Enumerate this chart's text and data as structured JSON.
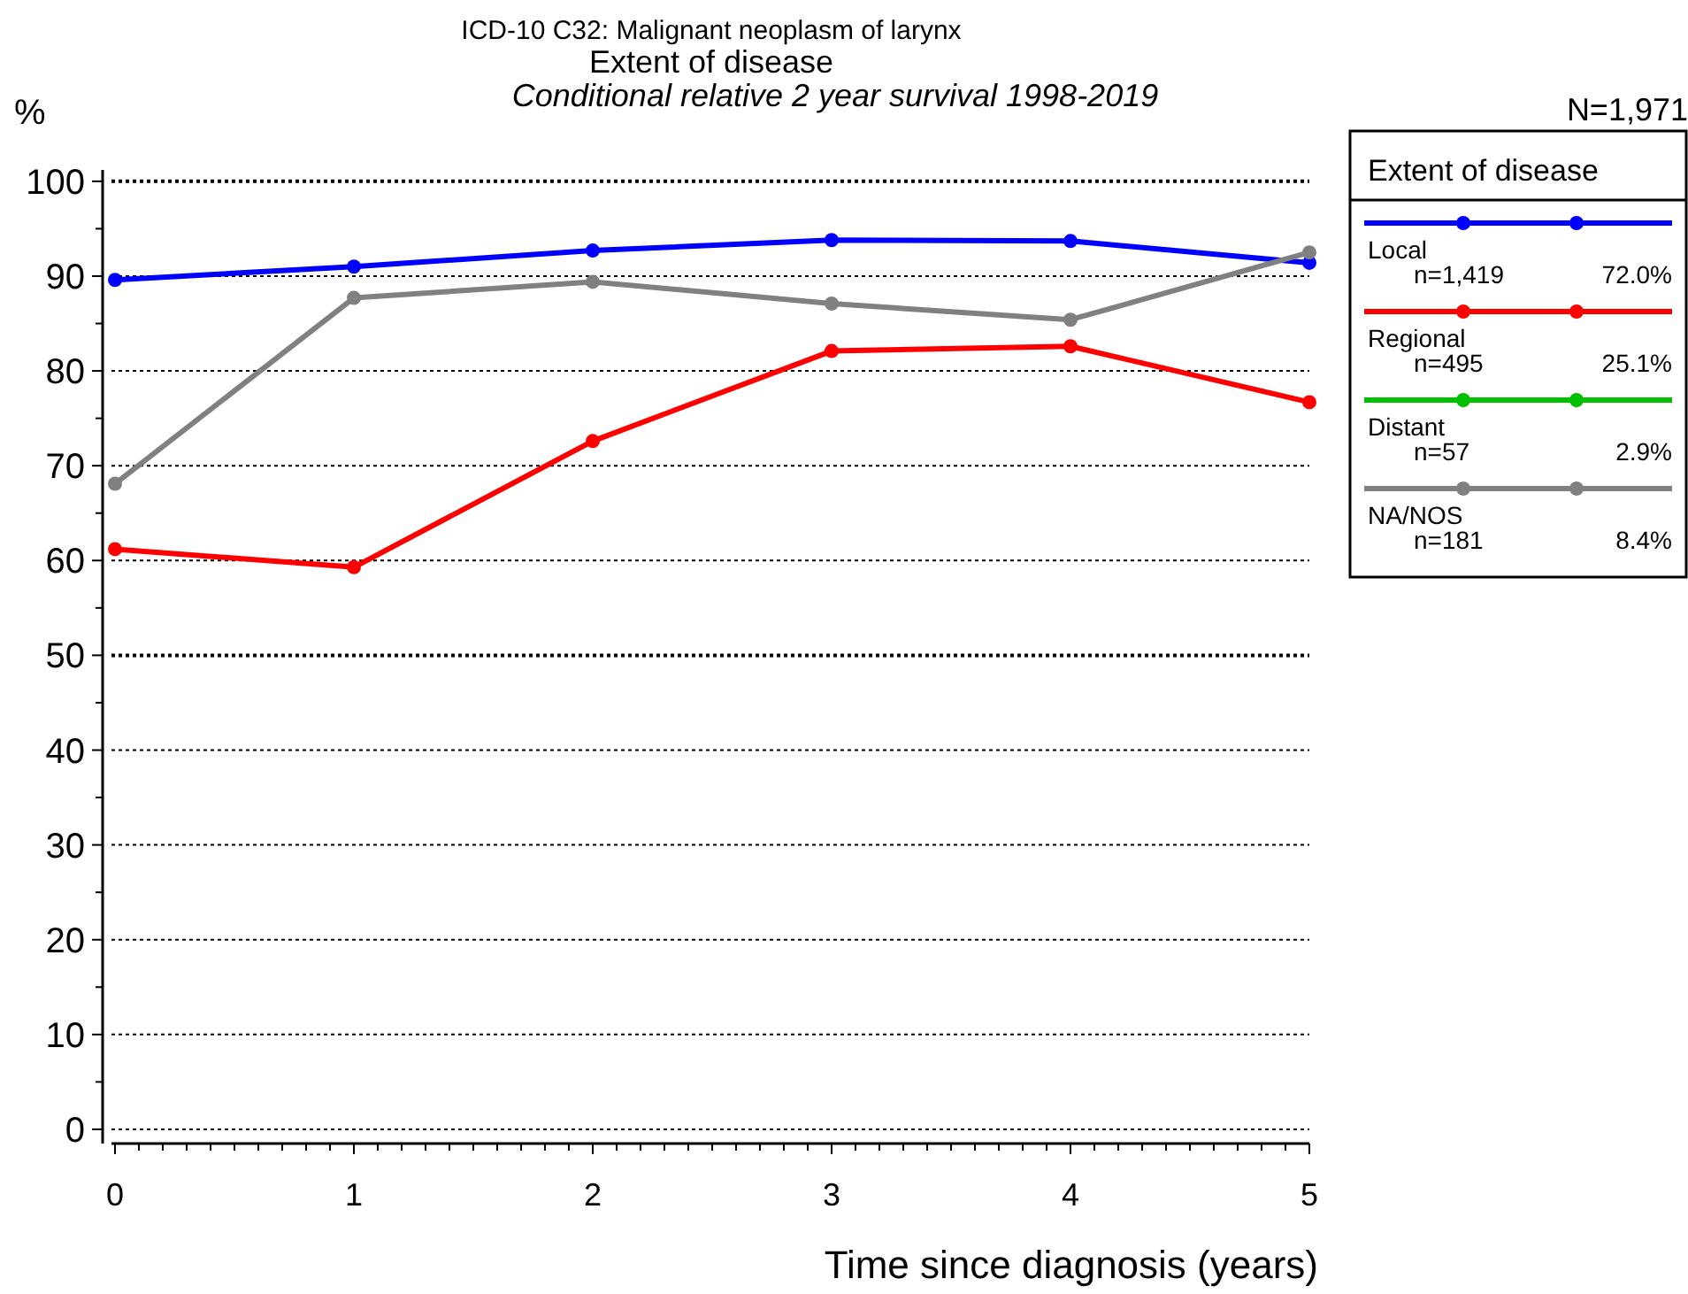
{
  "chart_data": {
    "type": "line",
    "title": "ICD-10 C32: Malignant neoplasm of larynx\nExtent of disease",
    "subtitle": "Conditional relative 2 year survival 1998-2019",
    "xlabel": "Time since diagnosis (years)",
    "ylabel": "%",
    "legend_title": "Extent of disease",
    "legend": "right",
    "grid": "y",
    "marker": "circle",
    "line_style": "solid",
    "x": [
      0,
      1,
      2,
      3,
      4,
      5
    ],
    "xlim": [
      0,
      5
    ],
    "ylim": [
      -1.5,
      101.2
    ],
    "xticks": [
      0,
      {
        "value": 0.1,
        "label": null
      },
      {
        "value": 0.2,
        "label": null
      },
      {
        "value": 0.3,
        "label": null
      },
      {
        "value": 0.4,
        "label": null
      },
      {
        "value": 0.5,
        "label": null
      },
      {
        "value": 0.6,
        "label": null
      },
      {
        "value": 0.7,
        "label": null
      },
      {
        "value": 0.8,
        "label": null
      },
      {
        "value": 0.9,
        "label": null
      },
      1,
      {
        "value": 1.1,
        "label": null
      },
      {
        "value": 1.2,
        "label": null
      },
      {
        "value": 1.3,
        "label": null
      },
      {
        "value": 1.4,
        "label": null
      },
      {
        "value": 1.5,
        "label": null
      },
      {
        "value": 1.6,
        "label": null
      },
      {
        "value": 1.7,
        "label": null
      },
      {
        "value": 1.8,
        "label": null
      },
      {
        "value": 1.9,
        "label": null
      },
      2,
      {
        "value": 2.1,
        "label": null
      },
      {
        "value": 2.2,
        "label": null
      },
      {
        "value": 2.3,
        "label": null
      },
      {
        "value": 2.4,
        "label": null
      },
      {
        "value": 2.5,
        "label": null
      },
      {
        "value": 2.6,
        "label": null
      },
      {
        "value": 2.7,
        "label": null
      },
      {
        "value": 2.8,
        "label": null
      },
      {
        "value": 2.9,
        "label": null
      },
      3,
      {
        "value": 3.1,
        "label": null
      },
      {
        "value": 3.2,
        "label": null
      },
      {
        "value": 3.3,
        "label": null
      },
      {
        "value": 3.4,
        "label": null
      },
      {
        "value": 3.5,
        "label": null
      },
      {
        "value": 3.6,
        "label": null
      },
      {
        "value": 3.7,
        "label": null
      },
      {
        "value": 3.8,
        "label": null
      },
      {
        "value": 3.9,
        "label": null
      },
      4,
      {
        "value": 4.1,
        "label": null
      },
      {
        "value": 4.2,
        "label": null
      },
      {
        "value": 4.3,
        "label": null
      },
      {
        "value": 4.4,
        "label": null
      },
      {
        "value": 4.5,
        "label": null
      },
      {
        "value": 4.6,
        "label": null
      },
      {
        "value": 4.7,
        "label": null
      },
      {
        "value": 4.8,
        "label": null
      },
      {
        "value": 4.9,
        "label": null
      },
      5
    ],
    "yticks": [
      0,
      {
        "value": 5,
        "label": null
      },
      10,
      {
        "value": 15,
        "label": null
      },
      20,
      {
        "value": 25,
        "label": null
      },
      30,
      {
        "value": 35,
        "label": null
      },
      40,
      {
        "value": 45,
        "label": null
      },
      50,
      {
        "value": 55,
        "label": null
      },
      60,
      {
        "value": 65,
        "label": null
      },
      70,
      {
        "value": 75,
        "label": null
      },
      80,
      {
        "value": 85,
        "label": null
      },
      90,
      {
        "value": 95,
        "label": null
      },
      100
    ],
    "series": [
      {
        "name": "Local",
        "color": "#0000ff",
        "values": [
          89.6,
          91.0,
          92.7,
          93.8,
          93.7,
          91.4
        ]
      },
      {
        "name": "Regional",
        "color": "#ff0000",
        "values": [
          61.2,
          59.3,
          72.6,
          82.1,
          82.6,
          76.7
        ]
      },
      {
        "name": "Distant",
        "color": "#00c000",
        "values": [
          null,
          null,
          null,
          null,
          null,
          null
        ]
      },
      {
        "name": "NA/NOS",
        "color": "#808080",
        "values": [
          68.1,
          87.7,
          89.4,
          87.1,
          85.4,
          92.5
        ]
      }
    ],
    "annotations": [
      "N=1,971",
      "n=1,419",
      "72.0%",
      "n=495",
      "25.1%",
      "n=57",
      "2.9%",
      "n=181",
      "8.4%"
    ]
  }
}
